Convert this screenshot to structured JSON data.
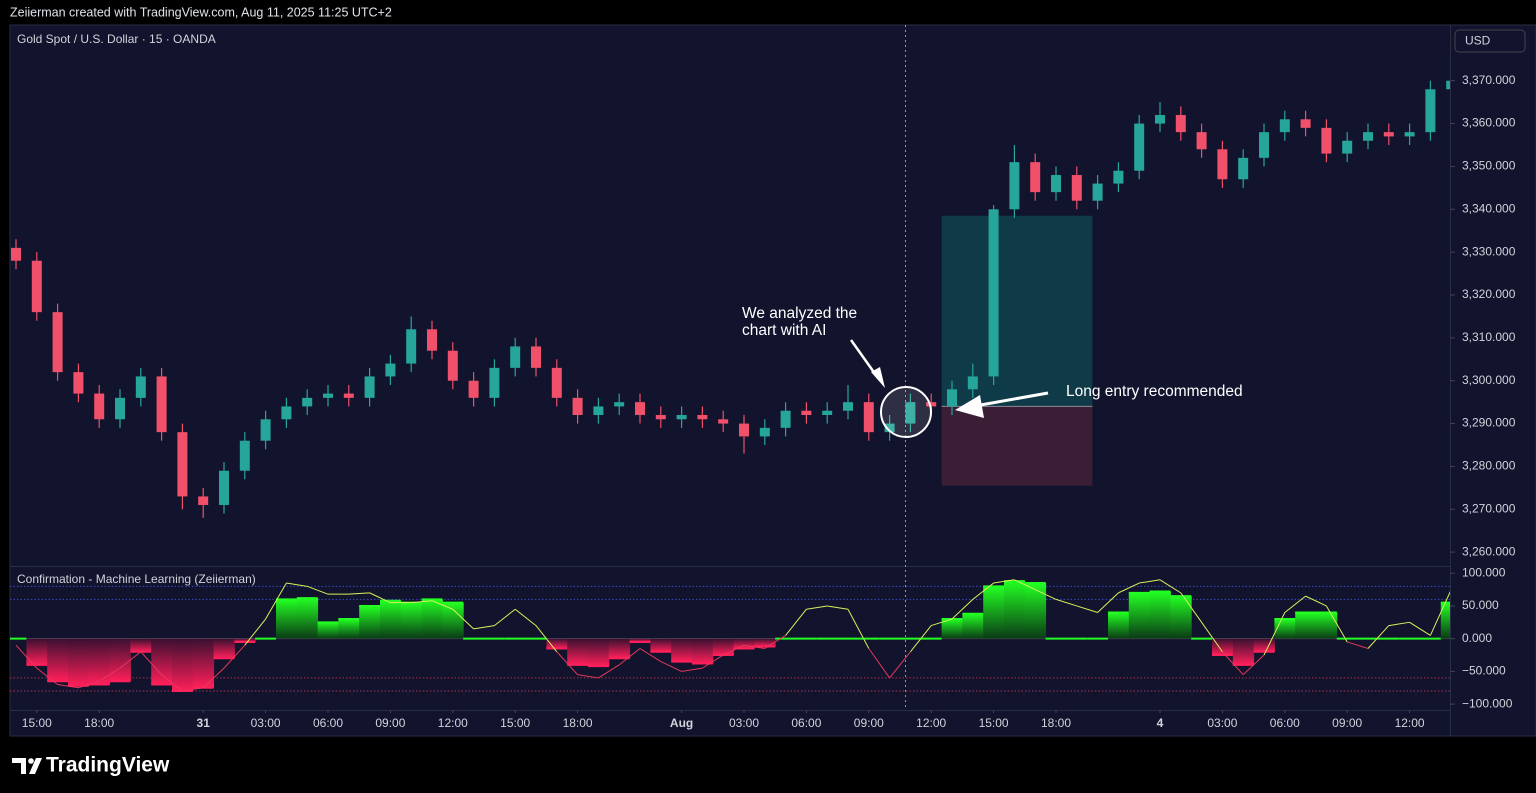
{
  "header": {
    "attribution": "Zeiierman created with TradingView.com, Aug 11, 2025 11:25 UTC+2",
    "currency": "USD"
  },
  "footer": {
    "brand": "TradingView"
  },
  "chart_data": [
    {
      "type": "candlestick",
      "title": "Gold Spot / U.S. Dollar · 15 · OANDA",
      "up_color": "#26a69a",
      "down_color": "#f0506a",
      "ylim": [
        3257,
        3383
      ],
      "yticks": [
        {
          "value": 3260,
          "label": "3,260.000"
        },
        {
          "value": 3270,
          "label": "3,270.000"
        },
        {
          "value": 3280,
          "label": "3,280.000"
        },
        {
          "value": 3290,
          "label": "3,290.000"
        },
        {
          "value": 3300,
          "label": "3,300.000"
        },
        {
          "value": 3310,
          "label": "3,310.000"
        },
        {
          "value": 3320,
          "label": "3,320.000"
        },
        {
          "value": 3330,
          "label": "3,330.000"
        },
        {
          "value": 3340,
          "label": "3,340.000"
        },
        {
          "value": 3350,
          "label": "3,350.000"
        },
        {
          "value": 3360,
          "label": "3,360.000"
        },
        {
          "value": 3370,
          "label": "3,370.000"
        }
      ],
      "xticks": [
        {
          "value": 1,
          "label": "15:00"
        },
        {
          "value": 4,
          "label": "18:00"
        },
        {
          "value": 9,
          "label": "31"
        },
        {
          "value": 12,
          "label": "03:00"
        },
        {
          "value": 15,
          "label": "06:00"
        },
        {
          "value": 18,
          "label": "09:00"
        },
        {
          "value": 21,
          "label": "12:00"
        },
        {
          "value": 24,
          "label": "15:00"
        },
        {
          "value": 27,
          "label": "18:00"
        },
        {
          "value": 32,
          "label": "Aug"
        },
        {
          "value": 35,
          "label": "03:00"
        },
        {
          "value": 38,
          "label": "06:00"
        },
        {
          "value": 41,
          "label": "09:00"
        },
        {
          "value": 44,
          "label": "12:00"
        },
        {
          "value": 47,
          "label": "15:00"
        },
        {
          "value": 50,
          "label": "18:00"
        },
        {
          "value": 55,
          "label": "4"
        },
        {
          "value": 58,
          "label": "03:00"
        },
        {
          "value": 61,
          "label": "06:00"
        },
        {
          "value": 64,
          "label": "09:00"
        },
        {
          "value": 67,
          "label": "12:00"
        }
      ],
      "open": [
        3331,
        3328,
        3316,
        3302,
        3297,
        3291,
        3296,
        3301,
        3288,
        3273,
        3271,
        3279,
        3286,
        3291,
        3294,
        3296,
        3297,
        3296,
        3301,
        3304,
        3312,
        3307,
        3300,
        3296,
        3303,
        3308,
        3303,
        3296,
        3292,
        3294,
        3295,
        3292,
        3291,
        3292,
        3291,
        3290,
        3287,
        3289,
        3293,
        3292,
        3293,
        3295,
        3288,
        3290,
        3295,
        3294,
        3298,
        3301,
        3340,
        3351,
        3344,
        3348,
        3342,
        3346,
        3349,
        3360,
        3362,
        3358,
        3354,
        3347,
        3352,
        3358,
        3361,
        3359,
        3353,
        3356,
        3358,
        3357,
        3358,
        3368
      ],
      "high": [
        3333,
        3330,
        3318,
        3304,
        3299,
        3298,
        3303,
        3303,
        3290,
        3275,
        3281,
        3288,
        3293,
        3296,
        3298,
        3299,
        3299,
        3303,
        3306,
        3315,
        3314,
        3309,
        3302,
        3305,
        3310,
        3310,
        3305,
        3298,
        3296,
        3297,
        3297,
        3294,
        3294,
        3294,
        3293,
        3292,
        3291,
        3295,
        3295,
        3295,
        3299,
        3297,
        3292,
        3297,
        3297,
        3300,
        3304,
        3341,
        3355,
        3353,
        3350,
        3350,
        3348,
        3351,
        3362,
        3365,
        3364,
        3360,
        3356,
        3354,
        3360,
        3363,
        3363,
        3361,
        3358,
        3360,
        3360,
        3360,
        3370,
        3371
      ],
      "low": [
        3326,
        3314,
        3300,
        3295,
        3289,
        3289,
        3294,
        3286,
        3270,
        3268,
        3269,
        3277,
        3284,
        3289,
        3292,
        3294,
        3294,
        3294,
        3299,
        3302,
        3305,
        3298,
        3294,
        3294,
        3301,
        3301,
        3294,
        3290,
        3290,
        3292,
        3290,
        3289,
        3289,
        3289,
        3288,
        3283,
        3285,
        3287,
        3290,
        3290,
        3291,
        3286,
        3286,
        3288,
        3292,
        3292,
        3296,
        3299,
        3338,
        3342,
        3342,
        3340,
        3340,
        3344,
        3347,
        3358,
        3356,
        3352,
        3345,
        3345,
        3350,
        3356,
        3357,
        3351,
        3351,
        3354,
        3355,
        3355,
        3356,
        3366
      ],
      "close": [
        3328,
        3316,
        3302,
        3297,
        3291,
        3296,
        3301,
        3288,
        3273,
        3271,
        3279,
        3286,
        3291,
        3294,
        3296,
        3297,
        3296,
        3301,
        3304,
        3312,
        3307,
        3300,
        3296,
        3303,
        3308,
        3303,
        3296,
        3292,
        3294,
        3295,
        3292,
        3291,
        3292,
        3291,
        3290,
        3287,
        3289,
        3293,
        3292,
        3293,
        3295,
        3288,
        3290,
        3295,
        3294,
        3298,
        3301,
        3340,
        3351,
        3344,
        3348,
        3342,
        3346,
        3349,
        3360,
        3362,
        3358,
        3354,
        3347,
        3352,
        3358,
        3361,
        3359,
        3353,
        3356,
        3358,
        3357,
        3358,
        3368,
        3370
      ],
      "position": {
        "from": 44.5,
        "to": 51.75,
        "entry": 3294,
        "target": 3338.5,
        "stop": 3275.5,
        "target_color": "#0e3b47",
        "stop_color": "#3a1e36"
      },
      "annotations": [
        "We analyzed the chart with AI",
        "Long entry recommended"
      ]
    },
    {
      "type": "oscillator",
      "title": "Confirmation - Machine Learning (Zeiierman)",
      "ylim": [
        -109,
        108
      ],
      "yticks": [
        {
          "value": 100,
          "label": "100.000"
        },
        {
          "value": 50,
          "label": "50.000"
        },
        {
          "value": 0,
          "label": "0.000"
        },
        {
          "value": -50,
          "label": "−50.000"
        },
        {
          "value": -100,
          "label": "−100.000"
        }
      ],
      "levels": [
        80,
        60,
        -60,
        -80
      ],
      "level_colors": [
        "#3a4bc0",
        "#3a4bc0",
        "#a8324f",
        "#a8324f"
      ],
      "histogram": [
        0,
        -40,
        -65,
        -72,
        -70,
        -65,
        -20,
        -70,
        -80,
        -75,
        -30,
        -5,
        0,
        60,
        62,
        25,
        30,
        50,
        58,
        55,
        60,
        55,
        0,
        0,
        0,
        0,
        -15,
        -40,
        -42,
        -30,
        -5,
        -20,
        -35,
        -38,
        -25,
        -15,
        -12,
        0,
        0,
        0,
        0,
        0,
        0,
        0,
        0,
        30,
        38,
        80,
        88,
        85,
        0,
        0,
        0,
        40,
        70,
        72,
        65,
        0,
        -25,
        -40,
        -20,
        30,
        40,
        40,
        0,
        0,
        0,
        0,
        0,
        55
      ],
      "line": [
        -10,
        -45,
        -70,
        -75,
        -65,
        -45,
        -20,
        -55,
        -80,
        -75,
        -45,
        -10,
        30,
        85,
        80,
        68,
        68,
        70,
        55,
        55,
        58,
        45,
        15,
        20,
        45,
        20,
        -20,
        -55,
        -60,
        -40,
        -15,
        -35,
        -50,
        -45,
        -25,
        -10,
        -15,
        5,
        45,
        50,
        45,
        -15,
        -60,
        -20,
        20,
        30,
        60,
        85,
        90,
        75,
        60,
        50,
        40,
        70,
        85,
        90,
        70,
        25,
        -20,
        -55,
        -25,
        40,
        65,
        50,
        -5,
        -15,
        20,
        25,
        5,
        75
      ],
      "up_color": "#22ff22",
      "down_color": "#ff1f5a",
      "line_up_color": "#d8f25a",
      "line_down_color": "#e8365d"
    }
  ]
}
